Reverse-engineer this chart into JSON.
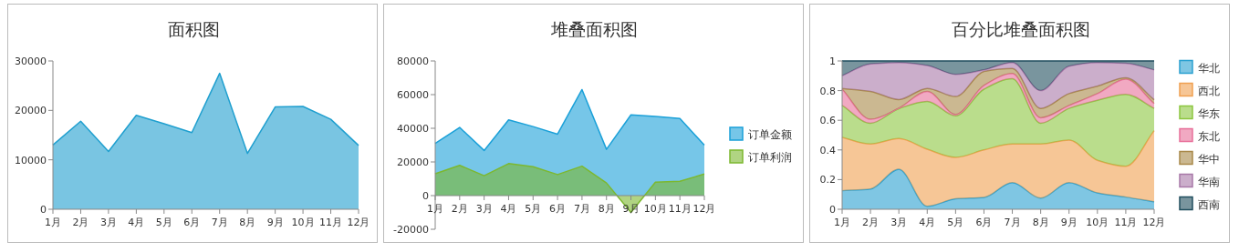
{
  "chart_data": [
    {
      "type": "area",
      "title": "面积图",
      "categories": [
        "1月",
        "2月",
        "3月",
        "4月",
        "5月",
        "6月",
        "7月",
        "8月",
        "9月",
        "10月",
        "11月",
        "12月"
      ],
      "ylim": [
        0,
        30000
      ],
      "yticks": [
        0,
        10000,
        20000,
        30000
      ],
      "series": [
        {
          "color": "#1f9fcf",
          "values": [
            13000,
            17800,
            11700,
            19000,
            17300,
            15500,
            27500,
            11300,
            20700,
            20800,
            18200,
            12900
          ]
        }
      ]
    },
    {
      "type": "area",
      "title": "堆叠面积图",
      "categories": [
        "1月",
        "2月",
        "3月",
        "4月",
        "5月",
        "6月",
        "7月",
        "8月",
        "9月",
        "10月",
        "11月",
        "12月"
      ],
      "ylim": [
        -20000,
        80000
      ],
      "yticks": [
        -20000,
        0,
        20000,
        40000,
        60000,
        80000
      ],
      "legend": "right",
      "series": [
        {
          "name": "订单金额",
          "color": "#1aa0d8",
          "values": [
            31000,
            40500,
            26800,
            45000,
            41000,
            36500,
            63000,
            27500,
            48000,
            47000,
            45800,
            30000
          ]
        },
        {
          "name": "订单利润",
          "color": "#7cb82f",
          "values": [
            13000,
            18000,
            11800,
            19000,
            17200,
            12500,
            17500,
            7500,
            -10000,
            8000,
            8500,
            12800
          ]
        }
      ]
    },
    {
      "type": "area",
      "title": "百分比堆叠面积图",
      "stacked": true,
      "categories": [
        "1月",
        "2月",
        "3月",
        "4月",
        "5月",
        "6月",
        "7月",
        "8月",
        "9月",
        "10月",
        "11月",
        "12月"
      ],
      "ylim": [
        0,
        1
      ],
      "yticks": [
        0,
        0.2,
        0.4,
        0.6,
        0.8,
        1
      ],
      "legend": "right",
      "series": [
        {
          "name": "华北",
          "color": "#2aa0d0",
          "values": [
            0.125,
            0.137,
            0.27,
            0.02,
            0.07,
            0.08,
            0.18,
            0.075,
            0.18,
            0.11,
            0.082,
            0.05
          ]
        },
        {
          "name": "西北",
          "color": "#f0a050",
          "values": [
            0.36,
            0.303,
            0.207,
            0.385,
            0.28,
            0.32,
            0.26,
            0.365,
            0.287,
            0.22,
            0.208,
            0.48
          ]
        },
        {
          "name": "华东",
          "color": "#8cc63f",
          "values": [
            0.215,
            0.14,
            0.201,
            0.322,
            0.28,
            0.41,
            0.44,
            0.14,
            0.213,
            0.405,
            0.485,
            0.15
          ]
        },
        {
          "name": "东北",
          "color": "#e8709a",
          "values": [
            0.11,
            0.027,
            0.004,
            0.068,
            0.01,
            0.025,
            0.035,
            0.037,
            0.02,
            0.045,
            0.102,
            0.033
          ]
        },
        {
          "name": "华中",
          "color": "#a88848",
          "values": [
            0.005,
            0.188,
            0.058,
            0.02,
            0.12,
            0.095,
            0.035,
            0.063,
            0.08,
            0.05,
            0.01,
            0.025
          ]
        },
        {
          "name": "华南",
          "color": "#a878a8",
          "values": [
            0.085,
            0.185,
            0.25,
            0.155,
            0.15,
            0.01,
            0.04,
            0.12,
            0.185,
            0.16,
            0.098,
            0.202
          ]
        },
        {
          "name": "西南",
          "color": "#204e5e",
          "values": [
            0.1,
            0.02,
            0.01,
            0.03,
            0.09,
            0.06,
            0.01,
            0.2,
            0.035,
            0.01,
            0.015,
            0.06
          ]
        }
      ]
    }
  ]
}
